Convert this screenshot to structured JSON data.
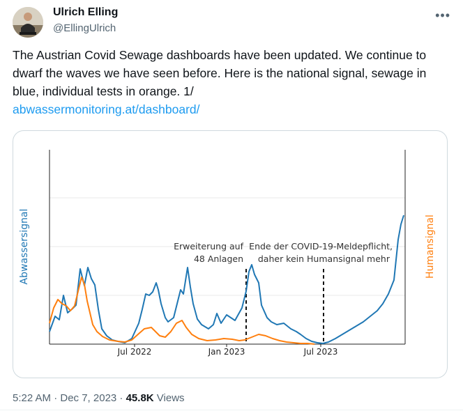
{
  "author": {
    "name": "Ulrich Elling",
    "handle": "@EllingUlrich"
  },
  "more_icon": "ellipsis-icon",
  "tweet": {
    "text": "The Austrian Covid Sewage dashboards have been updated. We continue to dwarf the waves we have seen before. Here is the national signal, sewage in blue, individual tests in orange. 1/",
    "link": "abwassermonitoring.at/dashboard/"
  },
  "chart_data": {
    "type": "line",
    "left_axis_label": "Abwassersignal",
    "right_axis_label": "Humansignal",
    "x_ticks": [
      "Jul 2022",
      "Jan 2023",
      "Jul 2023"
    ],
    "colors": {
      "sewage": "#1f77b4",
      "human": "#ff7f0e"
    },
    "annotations": [
      {
        "line1": "Erweiterung auf",
        "line2": "48 Anlagen",
        "date": "2023-01"
      },
      {
        "line1": "Ende der COVID-19-Meldepflicht,",
        "line2": "daher kein Humansignal mehr",
        "date": "2023-07"
      }
    ],
    "series": [
      {
        "key": "sewage",
        "points": [
          [
            0,
            18
          ],
          [
            8,
            40
          ],
          [
            14,
            35
          ],
          [
            20,
            70
          ],
          [
            26,
            45
          ],
          [
            32,
            50
          ],
          [
            38,
            56
          ],
          [
            44,
            108
          ],
          [
            50,
            84
          ],
          [
            55,
            110
          ],
          [
            60,
            94
          ],
          [
            65,
            85
          ],
          [
            70,
            50
          ],
          [
            75,
            22
          ],
          [
            82,
            12
          ],
          [
            90,
            6
          ],
          [
            98,
            4
          ],
          [
            108,
            2
          ],
          [
            118,
            8
          ],
          [
            128,
            30
          ],
          [
            133,
            50
          ],
          [
            138,
            72
          ],
          [
            143,
            70
          ],
          [
            148,
            75
          ],
          [
            153,
            88
          ],
          [
            156,
            78
          ],
          [
            160,
            58
          ],
          [
            166,
            38
          ],
          [
            170,
            32
          ],
          [
            178,
            38
          ],
          [
            184,
            62
          ],
          [
            188,
            78
          ],
          [
            192,
            72
          ],
          [
            198,
            110
          ],
          [
            202,
            82
          ],
          [
            206,
            58
          ],
          [
            212,
            36
          ],
          [
            218,
            28
          ],
          [
            228,
            22
          ],
          [
            235,
            28
          ],
          [
            240,
            44
          ],
          [
            246,
            30
          ],
          [
            254,
            42
          ],
          [
            266,
            34
          ],
          [
            276,
            52
          ],
          [
            282,
            76
          ],
          [
            286,
            104
          ],
          [
            290,
            114
          ],
          [
            294,
            100
          ],
          [
            300,
            88
          ],
          [
            304,
            56
          ],
          [
            312,
            38
          ],
          [
            318,
            32
          ],
          [
            326,
            28
          ],
          [
            336,
            30
          ],
          [
            346,
            22
          ],
          [
            354,
            18
          ],
          [
            360,
            14
          ],
          [
            368,
            8
          ],
          [
            376,
            4
          ],
          [
            384,
            2
          ],
          [
            392,
            1
          ],
          [
            400,
            3
          ],
          [
            410,
            8
          ],
          [
            420,
            14
          ],
          [
            430,
            20
          ],
          [
            440,
            26
          ],
          [
            450,
            32
          ],
          [
            460,
            40
          ],
          [
            470,
            48
          ],
          [
            478,
            58
          ],
          [
            486,
            72
          ],
          [
            494,
            92
          ],
          [
            500,
            150
          ],
          [
            504,
            172
          ],
          [
            508,
            185
          ]
        ]
      },
      {
        "key": "human",
        "points": [
          [
            0,
            30
          ],
          [
            6,
            52
          ],
          [
            12,
            64
          ],
          [
            18,
            58
          ],
          [
            24,
            55
          ],
          [
            30,
            48
          ],
          [
            36,
            55
          ],
          [
            42,
            80
          ],
          [
            46,
            96
          ],
          [
            50,
            86
          ],
          [
            54,
            62
          ],
          [
            58,
            45
          ],
          [
            62,
            28
          ],
          [
            68,
            18
          ],
          [
            76,
            11
          ],
          [
            86,
            6
          ],
          [
            98,
            4
          ],
          [
            108,
            3
          ],
          [
            118,
            6
          ],
          [
            128,
            15
          ],
          [
            136,
            22
          ],
          [
            146,
            24
          ],
          [
            152,
            18
          ],
          [
            158,
            12
          ],
          [
            166,
            10
          ],
          [
            174,
            18
          ],
          [
            182,
            30
          ],
          [
            190,
            34
          ],
          [
            196,
            24
          ],
          [
            204,
            14
          ],
          [
            214,
            8
          ],
          [
            226,
            5
          ],
          [
            238,
            6
          ],
          [
            250,
            8
          ],
          [
            262,
            7
          ],
          [
            272,
            5
          ],
          [
            280,
            6
          ],
          [
            290,
            10
          ],
          [
            300,
            14
          ],
          [
            310,
            12
          ],
          [
            320,
            8
          ],
          [
            330,
            5
          ],
          [
            340,
            3
          ],
          [
            350,
            2
          ],
          [
            360,
            1
          ],
          [
            370,
            1
          ],
          [
            380,
            0
          ]
        ]
      }
    ]
  },
  "timestamp": "5:22 AM · Dec 7, 2023 · ",
  "views_count": "45.8K",
  "views_label": " Views"
}
